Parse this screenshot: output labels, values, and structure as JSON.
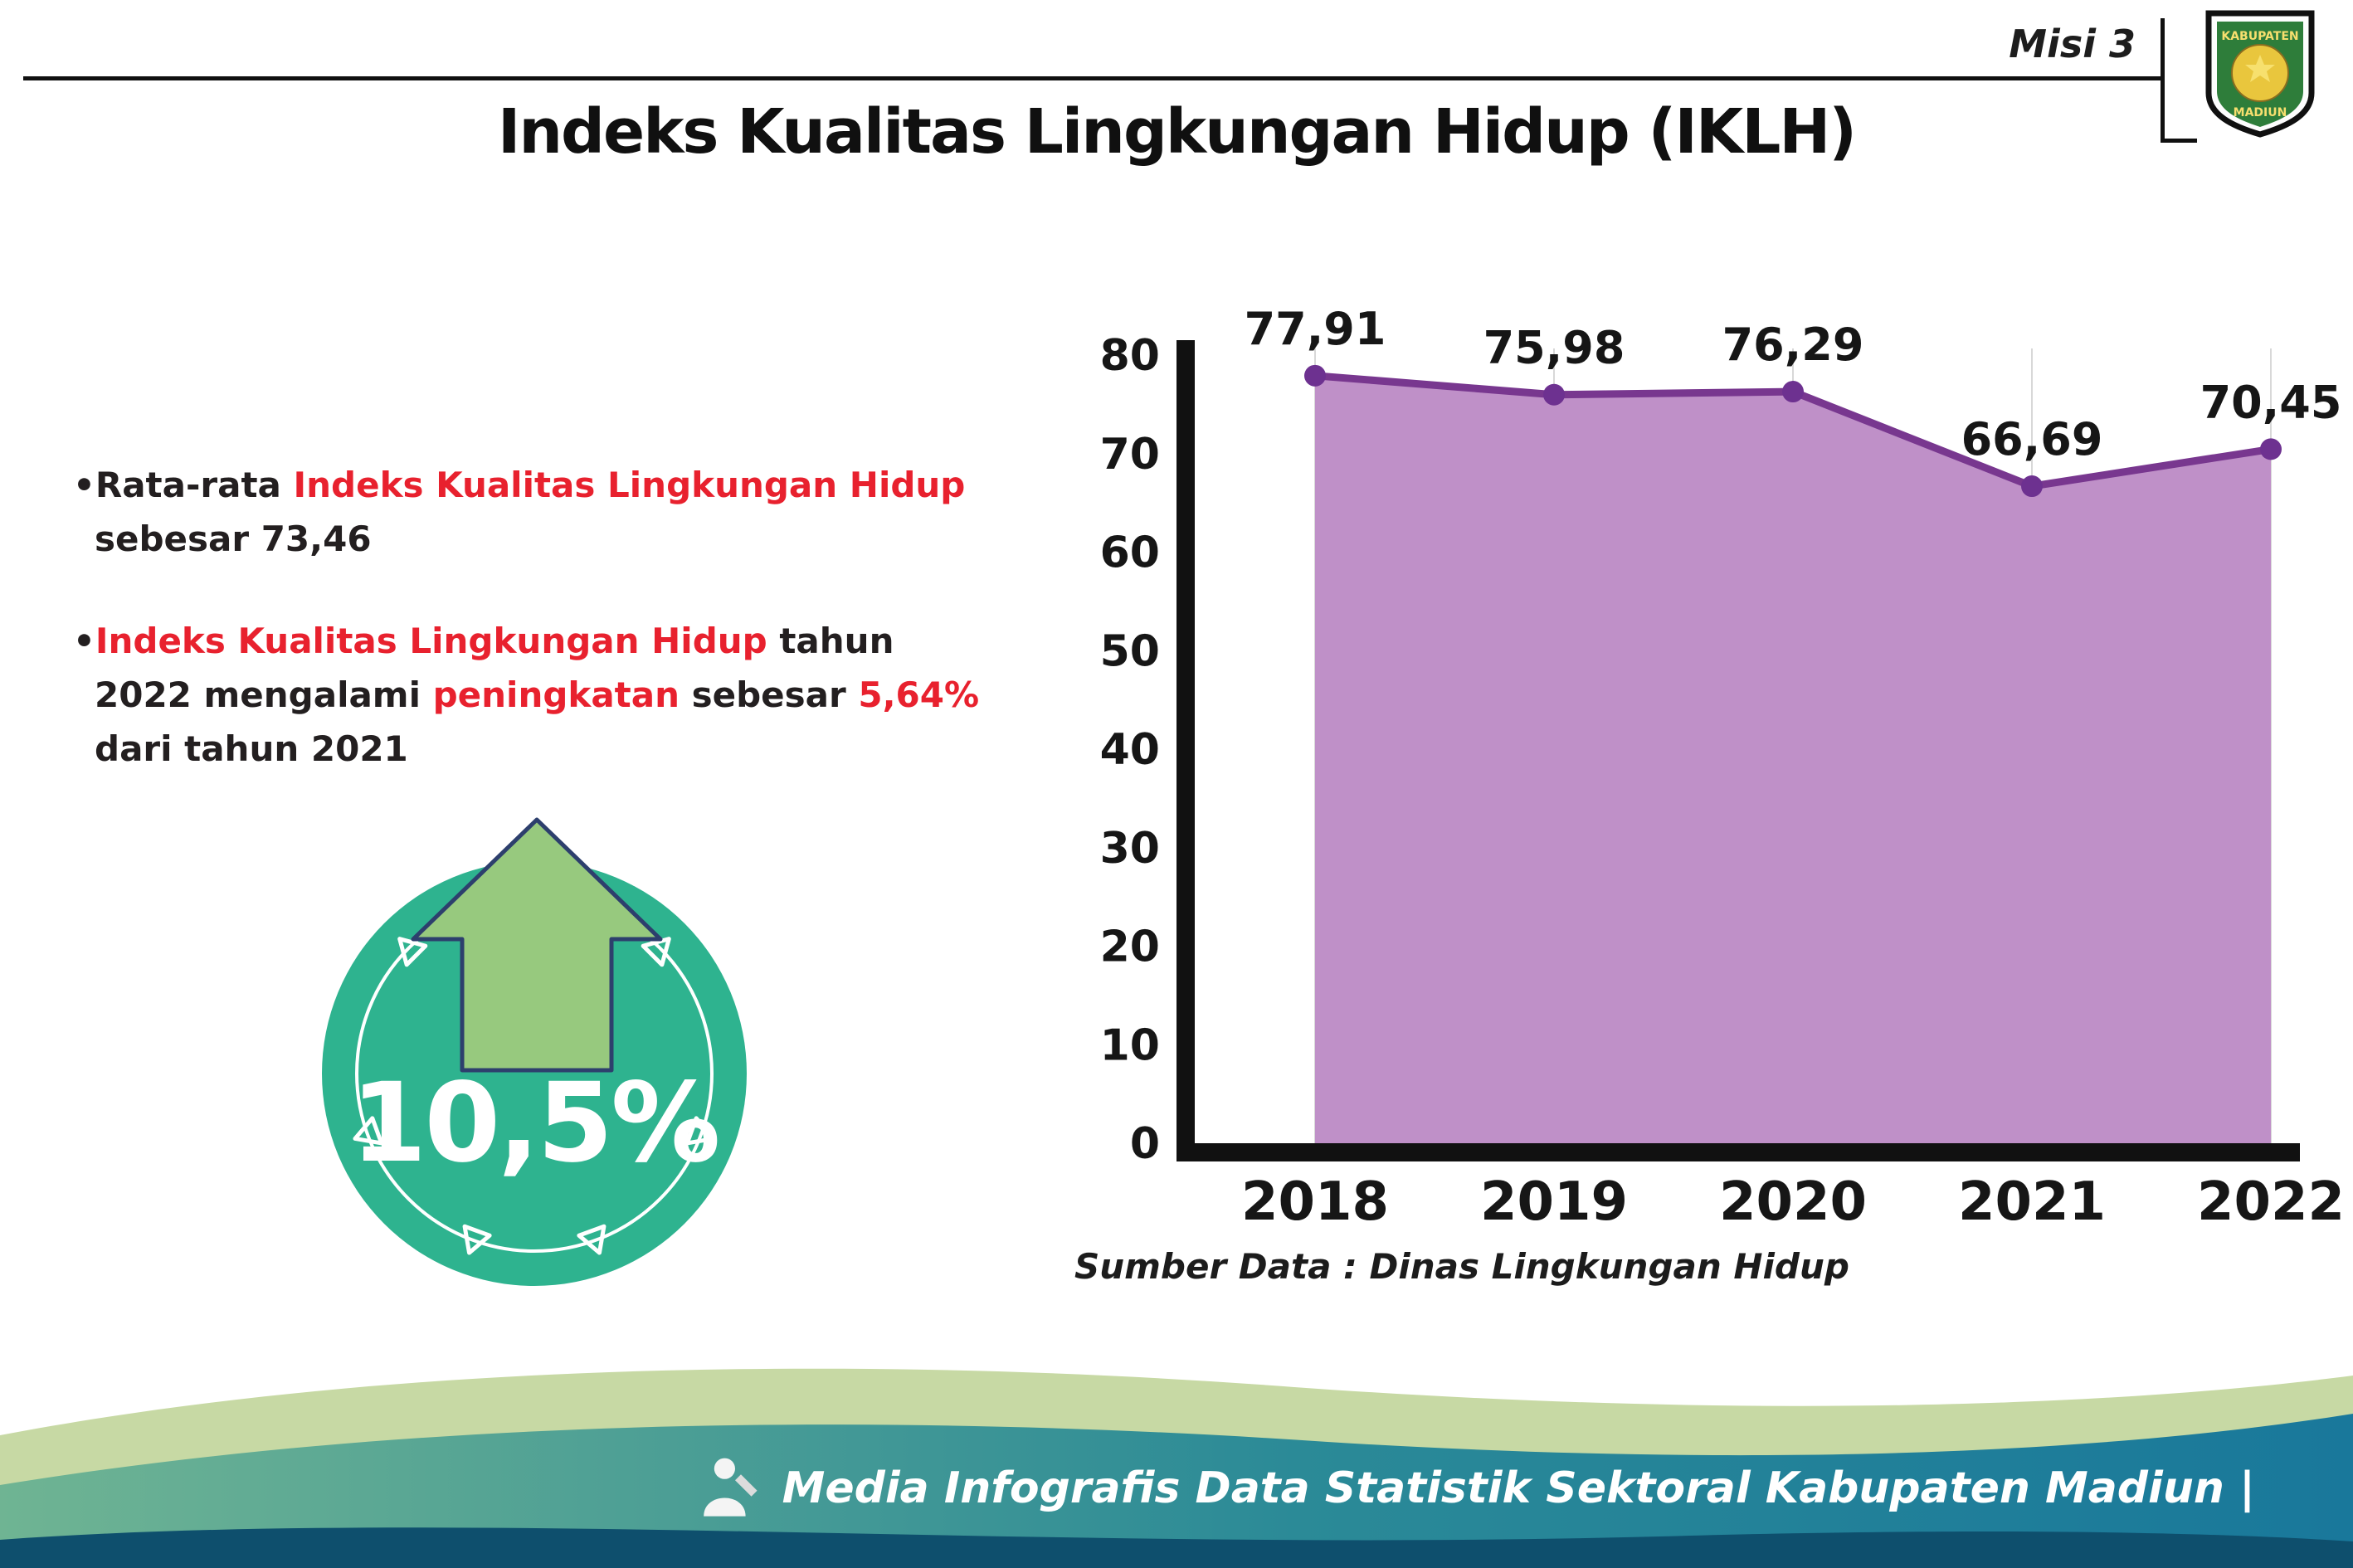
{
  "page": {
    "misi_label": "Misi 3",
    "title": "Indeks Kualitas Lingkungan Hidup (IKLH)"
  },
  "logo": {
    "top_text": "KABUPATEN",
    "bottom_text": "MADIUN"
  },
  "bullets": {
    "marker": "•",
    "b1": {
      "p1": "Rata-rata ",
      "red1": "Indeks Kualitas Lingkungan Hidup",
      "p2": " sebesar 73,46"
    },
    "b2": {
      "red1": "Indeks Kualitas Lingkungan Hidup",
      "p1": " tahun 2022 mengalami ",
      "red2": "peningkatan",
      "p2": " sebesar ",
      "red3": "5,64%",
      "p3": " dari tahun 2021"
    }
  },
  "badge": {
    "value": "10,5%"
  },
  "chart_data": {
    "type": "area",
    "title": "",
    "categories": [
      "2018",
      "2019",
      "2020",
      "2021",
      "2022"
    ],
    "values": [
      77.91,
      75.98,
      76.29,
      66.69,
      70.45
    ],
    "point_labels": [
      "77,91",
      "75,98",
      "76,29",
      "66,69",
      "70,45"
    ],
    "xlabel": "",
    "ylabel": "",
    "ylim": [
      0,
      80
    ],
    "yticks": [
      0,
      10,
      20,
      30,
      40,
      50,
      60,
      70,
      80
    ],
    "grid": "vertical-light",
    "legend": "none",
    "fill_color": "#bf90c8",
    "line_color": "#78378f",
    "marker_color": "#6d3190",
    "source_note": "Sumber Data : Dinas Lingkungan Hidup"
  },
  "footer": {
    "credit": "Media Infografis Data Statistik Sektoral Kabupaten Madiun |"
  },
  "colors": {
    "accent_red": "#e8212e",
    "badge_teal": "#2eb38f",
    "arrow_green": "#97c97e",
    "footer_light_green": "#c7d9a4",
    "footer_teal_start": "#6fb493",
    "footer_teal_end": "#19789b",
    "footer_dark": "#0e4f6d"
  }
}
